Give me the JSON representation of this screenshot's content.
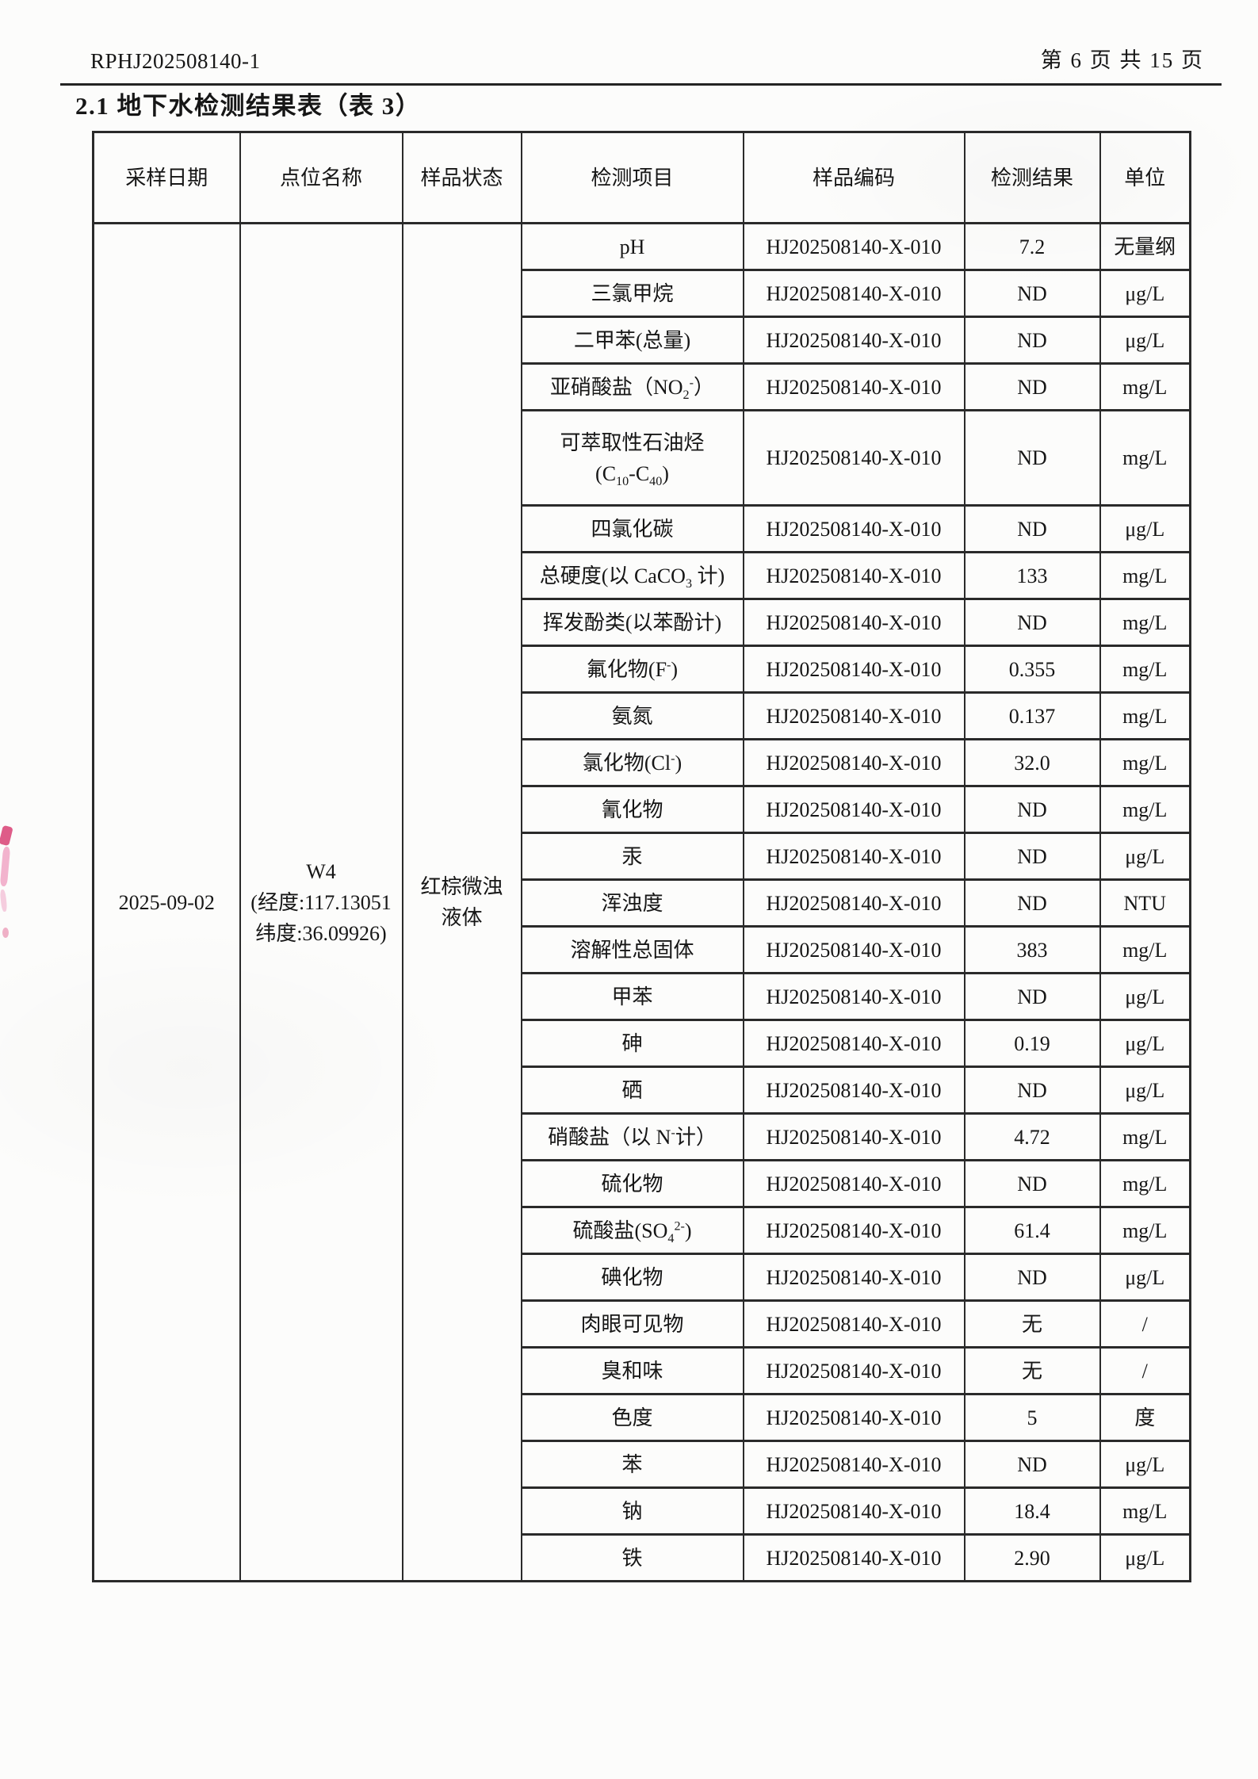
{
  "page": {
    "report_no": "RPHJ202508140-1",
    "page_info": "第 6 页 共 15 页",
    "section_title": "2.1 地下水检测结果表（表 3）"
  },
  "table": {
    "headers": [
      "采样日期",
      "点位名称",
      "样品状态",
      "检测项目",
      "样品编码",
      "检测结果",
      "单位"
    ],
    "sample_date": "2025-09-02",
    "point_name": "W4\n(经度:117.13051\n纬度:36.09926)",
    "sample_state": "红棕微浊\n液体",
    "rows": [
      {
        "item": "pH",
        "code": "HJ202508140-X-010",
        "result": "7.2",
        "unit": "无量纲"
      },
      {
        "item": "三氯甲烷",
        "code": "HJ202508140-X-010",
        "result": "ND",
        "unit": "μg/L"
      },
      {
        "item": "二甲苯(总量)",
        "code": "HJ202508140-X-010",
        "result": "ND",
        "unit": "μg/L"
      },
      {
        "item": "亚硝酸盐（NO~2~^-^）",
        "code": "HJ202508140-X-010",
        "result": "ND",
        "unit": "mg/L"
      },
      {
        "item": "可萃取性石油烃\n(C~10~-C~40~)",
        "code": "HJ202508140-X-010",
        "result": "ND",
        "unit": "mg/L",
        "tall": true
      },
      {
        "item": "四氯化碳",
        "code": "HJ202508140-X-010",
        "result": "ND",
        "unit": "μg/L"
      },
      {
        "item": "总硬度(以 CaCO~3~ 计)",
        "code": "HJ202508140-X-010",
        "result": "133",
        "unit": "mg/L"
      },
      {
        "item": "挥发酚类(以苯酚计)",
        "code": "HJ202508140-X-010",
        "result": "ND",
        "unit": "mg/L"
      },
      {
        "item": "氟化物(F^-^)",
        "code": "HJ202508140-X-010",
        "result": "0.355",
        "unit": "mg/L"
      },
      {
        "item": "氨氮",
        "code": "HJ202508140-X-010",
        "result": "0.137",
        "unit": "mg/L"
      },
      {
        "item": "氯化物(Cl^-^)",
        "code": "HJ202508140-X-010",
        "result": "32.0",
        "unit": "mg/L"
      },
      {
        "item": "氰化物",
        "code": "HJ202508140-X-010",
        "result": "ND",
        "unit": "mg/L"
      },
      {
        "item": "汞",
        "code": "HJ202508140-X-010",
        "result": "ND",
        "unit": "μg/L"
      },
      {
        "item": "浑浊度",
        "code": "HJ202508140-X-010",
        "result": "ND",
        "unit": "NTU"
      },
      {
        "item": "溶解性总固体",
        "code": "HJ202508140-X-010",
        "result": "383",
        "unit": "mg/L"
      },
      {
        "item": "甲苯",
        "code": "HJ202508140-X-010",
        "result": "ND",
        "unit": "μg/L"
      },
      {
        "item": "砷",
        "code": "HJ202508140-X-010",
        "result": "0.19",
        "unit": "μg/L"
      },
      {
        "item": "硒",
        "code": "HJ202508140-X-010",
        "result": "ND",
        "unit": "μg/L"
      },
      {
        "item": "硝酸盐（以 N^-^计）",
        "code": "HJ202508140-X-010",
        "result": "4.72",
        "unit": "mg/L"
      },
      {
        "item": "硫化物",
        "code": "HJ202508140-X-010",
        "result": "ND",
        "unit": "mg/L"
      },
      {
        "item": "硫酸盐(SO~4~^2-^)",
        "code": "HJ202508140-X-010",
        "result": "61.4",
        "unit": "mg/L"
      },
      {
        "item": "碘化物",
        "code": "HJ202508140-X-010",
        "result": "ND",
        "unit": "μg/L"
      },
      {
        "item": "肉眼可见物",
        "code": "HJ202508140-X-010",
        "result": "无",
        "unit": "/"
      },
      {
        "item": "臭和味",
        "code": "HJ202508140-X-010",
        "result": "无",
        "unit": "/"
      },
      {
        "item": "色度",
        "code": "HJ202508140-X-010",
        "result": "5",
        "unit": "度"
      },
      {
        "item": "苯",
        "code": "HJ202508140-X-010",
        "result": "ND",
        "unit": "μg/L"
      },
      {
        "item": "钠",
        "code": "HJ202508140-X-010",
        "result": "18.4",
        "unit": "mg/L"
      },
      {
        "item": "铁",
        "code": "HJ202508140-X-010",
        "result": "2.90",
        "unit": "μg/L"
      }
    ]
  }
}
